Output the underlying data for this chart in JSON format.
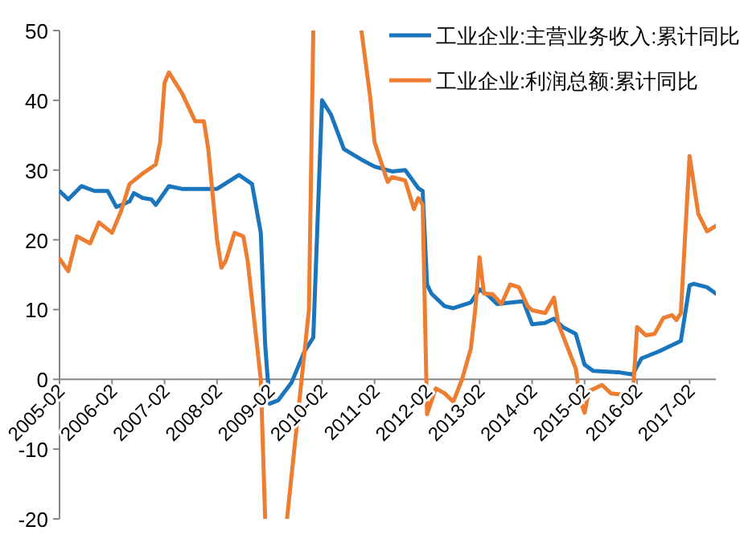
{
  "chart_data": {
    "type": "line",
    "legend": "top right",
    "grid": false,
    "xlim": [
      "2005-02",
      "2017-08"
    ],
    "xticks": [
      "2005-02",
      "2006-02",
      "2007-02",
      "2008-02",
      "2009-02",
      "2010-02",
      "2011-02",
      "2012-02",
      "2013-02",
      "2014-02",
      "2015-02",
      "2016-02",
      "2017-02"
    ],
    "ylim": [
      -20,
      50
    ],
    "yticks": [
      -20,
      -10,
      0,
      10,
      20,
      30,
      40,
      50
    ],
    "series": [
      {
        "name": "工业企业:主营业务收入:累计同比",
        "color": "#1a75bc",
        "x": [
          "2005-02",
          "2005-04",
          "2005-07",
          "2005-10",
          "2006-01",
          "2006-03",
          "2006-06",
          "2006-07",
          "2006-09",
          "2006-11",
          "2006-12",
          "2007-03",
          "2007-06",
          "2008-02",
          "2008-07",
          "2008-10",
          "2008-12",
          "2009-01",
          "2009-02",
          "2009-04",
          "2009-07",
          "2009-10",
          "2009-12",
          "2010-02",
          "2010-04",
          "2010-07",
          "2010-11",
          "2011-02",
          "2011-06",
          "2011-09",
          "2011-12",
          "2012-01",
          "2012-02",
          "2012-03",
          "2012-06",
          "2012-08",
          "2012-12",
          "2013-02",
          "2013-04",
          "2013-06",
          "2013-12",
          "2014-02",
          "2014-05",
          "2014-07",
          "2014-09",
          "2014-12",
          "2015-02",
          "2015-04",
          "2015-10",
          "2016-01",
          "2016-03",
          "2016-07",
          "2016-12",
          "2017-02",
          "2017-03",
          "2017-06",
          "2017-08"
        ],
        "values": [
          27,
          25.8,
          27.7,
          27,
          27,
          24.7,
          25.5,
          26.7,
          26,
          25.8,
          25,
          27.7,
          27.3,
          27.3,
          29.3,
          28,
          21,
          5,
          -3.5,
          -3,
          -0.5,
          4,
          6,
          40,
          38,
          33,
          31.5,
          30.5,
          29.8,
          30,
          27.4,
          27,
          13.6,
          12.3,
          10.5,
          10.2,
          11,
          12.9,
          12,
          10.8,
          11.2,
          7.9,
          8.1,
          8.7,
          7.5,
          6.5,
          2.1,
          1.2,
          1,
          0.7,
          3,
          4,
          5.5,
          13.5,
          13.7,
          13.2,
          12.3
        ]
      },
      {
        "name": "工业企业:利润总额:累计同比",
        "color": "#ed7d31",
        "x": [
          "2005-02",
          "2005-04",
          "2005-06",
          "2005-09",
          "2005-11",
          "2006-02",
          "2006-04",
          "2006-06",
          "2006-09",
          "2006-12",
          "2007-01",
          "2007-02",
          "2007-03",
          "2007-06",
          "2007-09",
          "2007-11",
          "2007-12",
          "2008-02",
          "2008-03",
          "2008-04",
          "2008-06",
          "2008-08",
          "2008-09",
          "2008-12",
          "2009-01",
          "2009-06",
          "2009-11",
          "2009-12",
          "2010-11",
          "2011-01",
          "2011-02",
          "2011-05",
          "2011-06",
          "2011-09",
          "2011-11",
          "2011-12",
          "2012-01",
          "2012-02",
          "2012-04",
          "2012-06",
          "2012-08",
          "2012-10",
          "2012-12",
          "2013-01",
          "2013-02",
          "2013-03",
          "2013-05",
          "2013-07",
          "2013-09",
          "2013-11",
          "2014-01",
          "2014-02",
          "2014-05",
          "2014-07",
          "2014-08",
          "2014-12",
          "2015-01",
          "2015-02",
          "2015-03",
          "2015-06",
          "2015-08",
          "2015-12",
          "2016-01",
          "2016-02",
          "2016-04",
          "2016-06",
          "2016-08",
          "2016-10",
          "2016-11",
          "2016-12",
          "2017-02",
          "2017-04",
          "2017-06",
          "2017-08"
        ],
        "values": [
          17.3,
          15.5,
          20.5,
          19.5,
          22.5,
          21,
          24,
          28,
          29.5,
          30.8,
          34,
          42.5,
          44,
          41,
          37,
          37,
          33,
          20,
          16,
          17,
          21,
          20.5,
          17,
          0,
          -20,
          -20,
          10,
          50,
          50,
          40.5,
          34,
          28.3,
          29,
          28.5,
          24.4,
          26,
          25,
          -5,
          -1.3,
          -2,
          -3.2,
          0,
          4.4,
          9.9,
          17.5,
          12.3,
          12.2,
          10.8,
          13.6,
          13.2,
          10.5,
          9.9,
          9.5,
          11.7,
          8,
          1.5,
          -3,
          -4.8,
          -1.7,
          -0.8,
          -2,
          -2.3,
          -2.5,
          7.5,
          6.3,
          6.5,
          8.8,
          9.2,
          8.5,
          9.5,
          32,
          23.7,
          21.2,
          22
        ]
      }
    ]
  }
}
